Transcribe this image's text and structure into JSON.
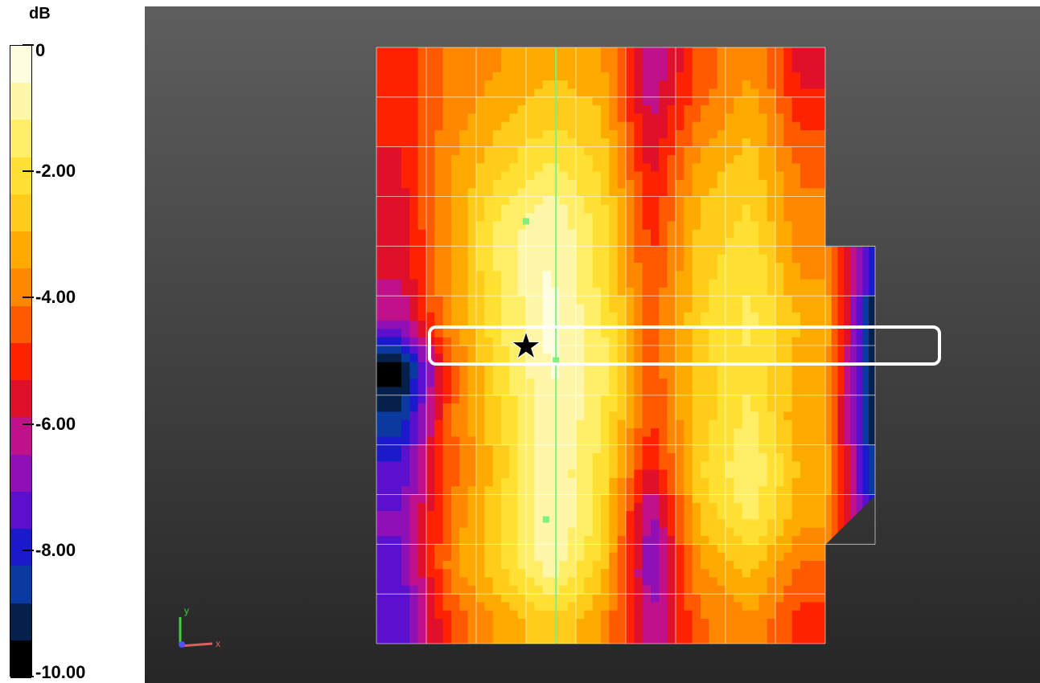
{
  "chart_data": {
    "type": "heatmap",
    "title": "",
    "colorbar": {
      "unit": "dB",
      "range": [
        -10.0,
        0
      ],
      "tick_labels": [
        "0",
        "-2.00",
        "-4.00",
        "-6.00",
        "-8.00",
        "-10.00"
      ],
      "tick_values": [
        0,
        -2,
        -4,
        -6,
        -8,
        -10
      ],
      "levels": 15,
      "colors_top_to_bottom": [
        "#fffde0",
        "#fff7a8",
        "#ffee66",
        "#ffe033",
        "#ffcc1a",
        "#ffaa00",
        "#ff8800",
        "#ff5a00",
        "#ff2200",
        "#e0102a",
        "#c0108a",
        "#9010b8",
        "#5a10cc",
        "#1a1acc",
        "#0a3aa0",
        "#05204a",
        "#000000"
      ]
    },
    "grid": {
      "columns": 9,
      "rows": 12,
      "values": [
        [
          -5.0,
          -4.0,
          -3.5,
          -3.0,
          -3.3,
          -6.5,
          -4.5,
          -3.5,
          -5.5
        ],
        [
          -5.2,
          -3.8,
          -3.0,
          -2.4,
          -2.8,
          -6.0,
          -4.0,
          -3.0,
          -4.8
        ],
        [
          -5.4,
          -3.5,
          -2.4,
          -1.6,
          -2.4,
          -5.5,
          -3.2,
          -2.6,
          -4.2
        ],
        [
          -5.6,
          -3.4,
          -1.6,
          -0.6,
          -2.0,
          -5.0,
          -2.8,
          -2.2,
          -4.0
        ],
        [
          -5.8,
          -3.4,
          -1.6,
          -0.5,
          -2.0,
          -4.8,
          -2.6,
          -1.8,
          -3.6
        ],
        [
          -6.5,
          -3.5,
          -1.8,
          -0.4,
          -1.6,
          -4.4,
          -2.4,
          -1.6,
          -3.0
        ],
        [
          -9.8,
          -4.5,
          -2.0,
          -0.5,
          -1.4,
          -4.6,
          -2.6,
          -1.8,
          -3.2
        ],
        [
          -8.5,
          -4.2,
          -2.4,
          -0.6,
          -1.6,
          -4.8,
          -2.6,
          -1.6,
          -3.4
        ],
        [
          -7.5,
          -4.4,
          -2.6,
          -0.6,
          -2.0,
          -5.5,
          -2.4,
          -1.2,
          -3.0
        ],
        [
          -7.0,
          -4.0,
          -2.2,
          -0.5,
          -2.0,
          -6.8,
          -2.8,
          -1.6,
          -3.4
        ],
        [
          -7.2,
          -3.8,
          -2.4,
          -0.8,
          -2.6,
          -7.0,
          -3.6,
          -2.8,
          -4.2
        ],
        [
          -7.5,
          -4.6,
          -3.4,
          -2.4,
          -3.4,
          -6.5,
          -4.2,
          -3.6,
          -5.0
        ]
      ],
      "extension": {
        "rows": [
          4,
          9
        ],
        "values": [
          -8.5,
          -9.5,
          -9.5,
          -9.5,
          -9.0,
          -8.0
        ]
      }
    },
    "markers": [
      {
        "type": "star",
        "col": 3.0,
        "row": 6.0
      },
      {
        "type": "point",
        "col": 3.0,
        "row": 3.5
      },
      {
        "type": "point",
        "col": 3.6,
        "row": 6.3
      },
      {
        "type": "point",
        "col": 3.4,
        "row": 9.5
      }
    ],
    "scan_line_col": 3.6,
    "highlight_row": 6.0,
    "axes_triad": {
      "x": "x",
      "y": "y"
    }
  },
  "colors": {
    "background_top": "#5e5e5e",
    "background_bottom": "#262626",
    "grid_line": "#ffffff",
    "scan_line": "#7ef07e",
    "marker": "#7ef07e",
    "highlight_box": "#ffffff"
  }
}
